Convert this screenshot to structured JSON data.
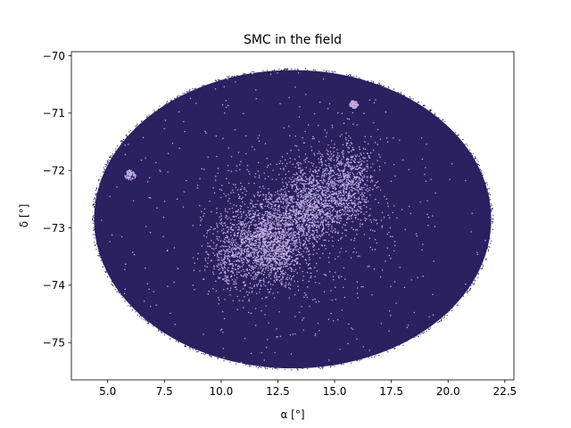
{
  "chart_data": {
    "type": "scatter",
    "title": "SMC in the field",
    "xlabel": "α [°]",
    "ylabel": "δ [°]",
    "xlim": [
      3.4,
      22.9
    ],
    "ylim": [
      -75.65,
      -69.93
    ],
    "xticks": [
      5.0,
      7.5,
      10.0,
      12.5,
      15.0,
      17.5,
      20.0,
      22.5
    ],
    "xtick_labels": [
      "5.0",
      "7.5",
      "10.0",
      "12.5",
      "15.0",
      "17.5",
      "20.0",
      "22.5"
    ],
    "yticks": [
      -70,
      -71,
      -72,
      -73,
      -74,
      -75
    ],
    "ytick_labels": [
      "−70",
      "−71",
      "−72",
      "−73",
      "−74",
      "−75"
    ],
    "grid": false,
    "legend": "none",
    "series": [
      {
        "role": "field",
        "color": "#2b2060",
        "marker_size": 1,
        "region": {
          "shape": "ellipse",
          "center": [
            13.15,
            -72.85
          ],
          "semi_axis_x": 8.75,
          "semi_axis_y": 2.6
        },
        "density": "dense, fills the field"
      },
      {
        "role": "smc",
        "color": "#c4b1e3",
        "marker_size": 1,
        "clusters": [
          {
            "center": [
              12.2,
              -73.25
            ],
            "spread": [
              1.3,
              0.35
            ],
            "weight": 0.34
          },
          {
            "center": [
              13.9,
              -72.6
            ],
            "spread": [
              1.2,
              0.35
            ],
            "weight": 0.24
          },
          {
            "center": [
              15.5,
              -72.2
            ],
            "spread": [
              1.0,
              0.35
            ],
            "weight": 0.16
          },
          {
            "center": [
              10.4,
              -73.45
            ],
            "spread": [
              1.0,
              0.4
            ],
            "weight": 0.1
          },
          {
            "center": [
              13.4,
              -72.9
            ],
            "spread": [
              4.0,
              0.9
            ],
            "weight": 0.16
          }
        ],
        "compact_groups": [
          {
            "center": [
              6.0,
              -72.08
            ],
            "radius": 0.25
          },
          {
            "center": [
              15.85,
              -70.85
            ],
            "radius": 0.2
          }
        ],
        "background_fraction": 0.05
      }
    ]
  }
}
